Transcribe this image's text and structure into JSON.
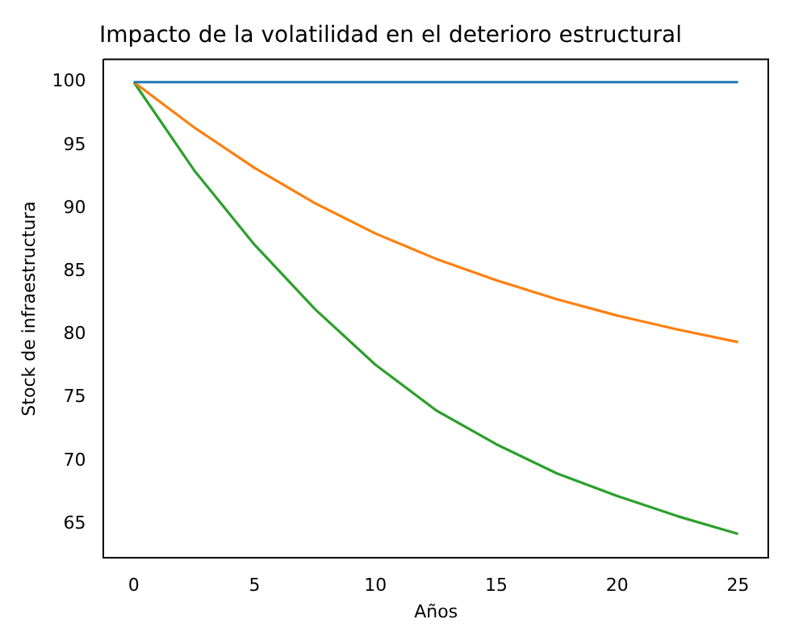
{
  "chart_data": {
    "type": "line",
    "title": "Impacto de la volatilidad en el deterioro estructural",
    "xlabel": "Años",
    "ylabel": "Stock de infraestructura",
    "x": [
      0,
      2.5,
      5,
      7.5,
      10,
      12.5,
      15,
      17.5,
      20,
      22.5,
      25
    ],
    "series": [
      {
        "color": "#1f77b4",
        "values": [
          100,
          100,
          100,
          100,
          100,
          100,
          100,
          100,
          100,
          100,
          100
        ]
      },
      {
        "color": "#ff7f0e",
        "values": [
          100,
          96.4,
          93.2,
          90.4,
          88.0,
          86.0,
          84.3,
          82.8,
          81.5,
          80.4,
          79.4
        ]
      },
      {
        "color": "#2ca02c",
        "values": [
          100,
          93.0,
          87.1,
          82.0,
          77.6,
          74.0,
          71.3,
          69.0,
          67.2,
          65.6,
          64.2
        ]
      }
    ],
    "xlim": [
      -1.25,
      26.25
    ],
    "xticks": [
      0,
      5,
      10,
      15,
      20,
      25
    ],
    "ylim": [
      62.3,
      101.8
    ],
    "yticks": [
      65,
      70,
      75,
      80,
      85,
      90,
      95,
      100
    ],
    "grid": false,
    "legend": false,
    "marker": "none",
    "line_style": "solid"
  }
}
